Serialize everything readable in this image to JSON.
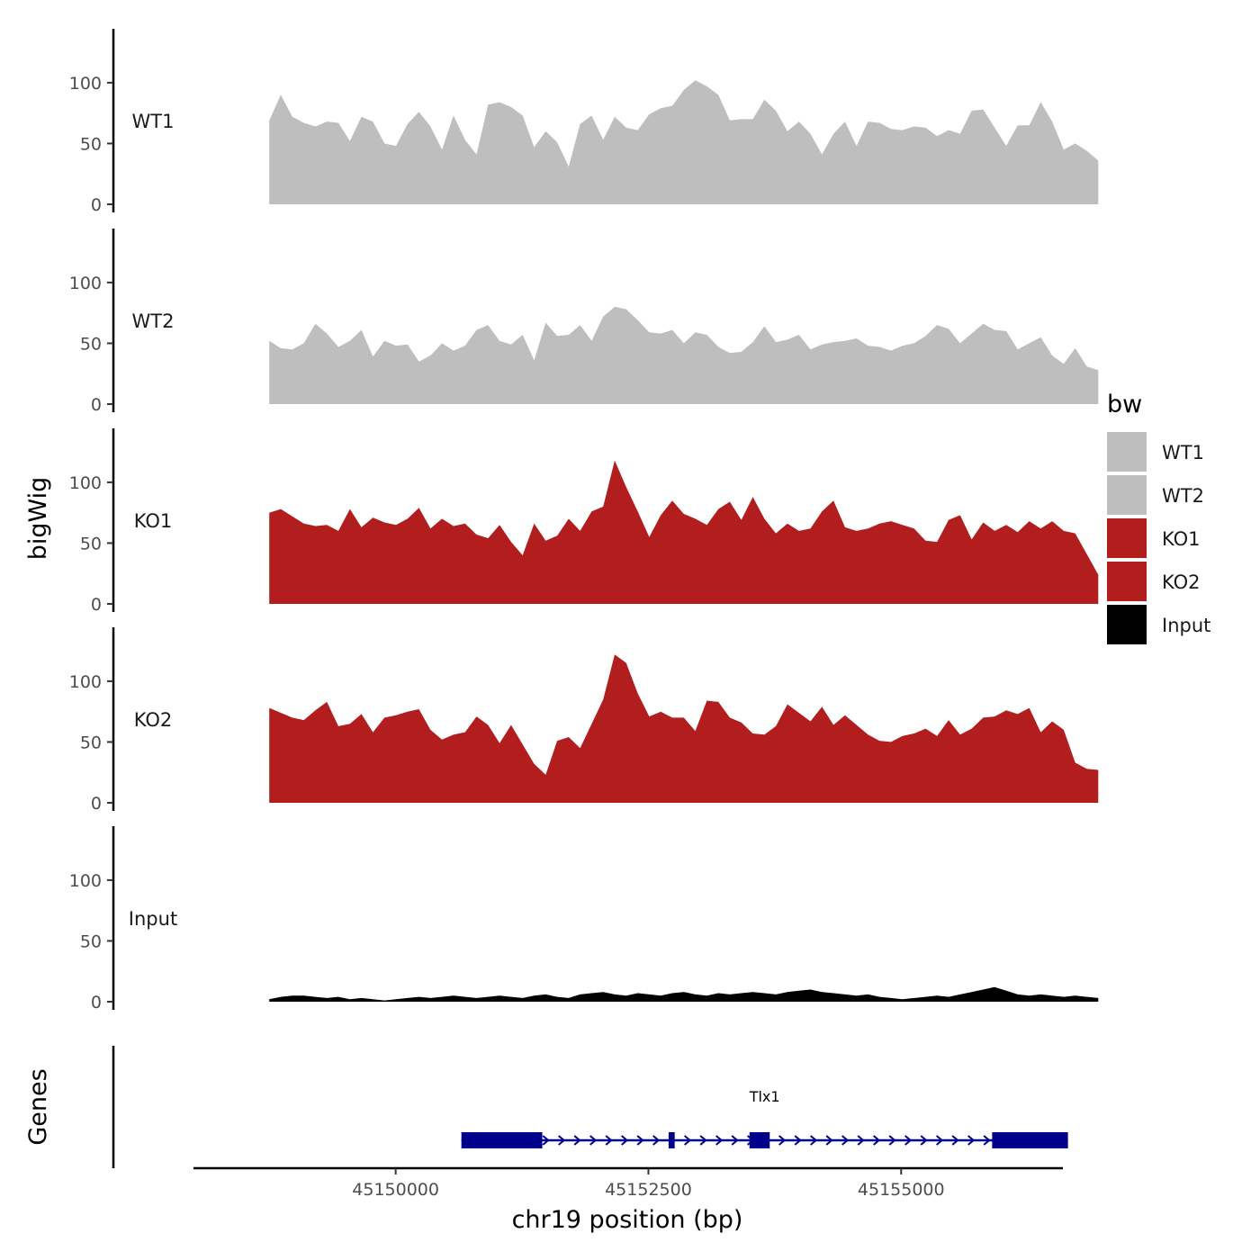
{
  "chart_data": {
    "type": "area",
    "chromosome": "chr19",
    "xlabel": "chr19 position (bp)",
    "ylabel": "bigWig",
    "x_range": [
      45148000,
      45156600
    ],
    "x_ticks": [
      45150000,
      45152500,
      45155000
    ],
    "x_tick_labels": [
      "45150000",
      "45152500",
      "45155000"
    ],
    "ylim": [
      0,
      140
    ],
    "y_ticks": [
      0,
      50,
      100
    ],
    "y_tick_labels": [
      "0",
      "50",
      "100"
    ],
    "legend_title": "bw",
    "legend": [
      {
        "label": "WT1",
        "color": "#bebebe"
      },
      {
        "label": "WT2",
        "color": "#bebebe"
      },
      {
        "label": "KO1",
        "color": "#b21e1e"
      },
      {
        "label": "KO2",
        "color": "#b21e1e"
      },
      {
        "label": "Input",
        "color": "#000000"
      }
    ],
    "series": [
      {
        "name": "WT1",
        "color": "#bebebe",
        "x_start": 45148750,
        "x_end": 45156950,
        "values": [
          69,
          90,
          72,
          67,
          64,
          68,
          67,
          52,
          72,
          68,
          50,
          48,
          66,
          76,
          64,
          45,
          73,
          53,
          41,
          82,
          84,
          80,
          73,
          47,
          60,
          51,
          31,
          66,
          73,
          53,
          72,
          63,
          61,
          74,
          79,
          81,
          94,
          102,
          97,
          90,
          69,
          70,
          70,
          86,
          77,
          60,
          68,
          58,
          41,
          58,
          68,
          48,
          68,
          67,
          62,
          61,
          64,
          63,
          56,
          61,
          58,
          77,
          78,
          63,
          48,
          65,
          65,
          84,
          68,
          45,
          50,
          44,
          36
        ]
      },
      {
        "name": "WT2",
        "color": "#bebebe",
        "x_start": 45148750,
        "x_end": 45156950,
        "values": [
          52,
          46,
          45,
          50,
          66,
          58,
          47,
          52,
          61,
          39,
          52,
          48,
          49,
          35,
          40,
          50,
          44,
          48,
          61,
          65,
          52,
          49,
          57,
          36,
          67,
          56,
          57,
          65,
          52,
          72,
          80,
          78,
          69,
          59,
          58,
          61,
          50,
          59,
          57,
          47,
          42,
          43,
          51,
          64,
          51,
          53,
          57,
          45,
          49,
          51,
          52,
          54,
          48,
          47,
          44,
          48,
          50,
          56,
          65,
          62,
          50,
          58,
          66,
          61,
          60,
          45,
          50,
          55,
          40,
          33,
          46,
          31,
          28
        ]
      },
      {
        "name": "KO1",
        "color": "#b21e1e",
        "x_start": 45148750,
        "x_end": 45156950,
        "values": [
          75,
          78,
          72,
          66,
          64,
          65,
          60,
          78,
          63,
          71,
          67,
          65,
          70,
          79,
          62,
          70,
          64,
          66,
          57,
          54,
          65,
          51,
          40,
          66,
          52,
          56,
          70,
          60,
          76,
          80,
          118,
          96,
          76,
          55,
          73,
          85,
          74,
          70,
          65,
          78,
          84,
          69,
          88,
          70,
          58,
          66,
          60,
          62,
          76,
          85,
          63,
          60,
          62,
          66,
          68,
          65,
          62,
          52,
          51,
          69,
          73,
          53,
          67,
          60,
          65,
          59,
          68,
          62,
          68,
          60,
          58,
          41,
          24
        ]
      },
      {
        "name": "KO2",
        "color": "#b21e1e",
        "x_start": 45148750,
        "x_end": 45156950,
        "values": [
          78,
          74,
          70,
          68,
          76,
          83,
          63,
          65,
          73,
          58,
          70,
          72,
          75,
          77,
          60,
          52,
          56,
          58,
          71,
          64,
          49,
          64,
          48,
          32,
          23,
          51,
          54,
          45,
          65,
          85,
          122,
          115,
          90,
          71,
          75,
          70,
          70,
          59,
          84,
          83,
          70,
          66,
          57,
          56,
          63,
          81,
          74,
          67,
          79,
          64,
          72,
          64,
          56,
          51,
          50,
          55,
          57,
          61,
          55,
          68,
          56,
          61,
          70,
          71,
          76,
          73,
          78,
          58,
          67,
          60,
          33,
          28,
          27
        ]
      },
      {
        "name": "Input",
        "color": "#000000",
        "x_start": 45148750,
        "x_end": 45156950,
        "values": [
          2,
          4,
          5,
          5,
          4,
          3,
          4,
          2,
          3,
          2,
          1,
          2,
          3,
          4,
          3,
          4,
          5,
          4,
          3,
          4,
          5,
          4,
          3,
          5,
          6,
          4,
          3,
          6,
          7,
          8,
          6,
          5,
          7,
          6,
          5,
          7,
          8,
          6,
          5,
          7,
          6,
          7,
          8,
          7,
          6,
          8,
          9,
          10,
          8,
          7,
          6,
          5,
          6,
          4,
          3,
          2,
          3,
          4,
          5,
          4,
          6,
          8,
          10,
          12,
          9,
          6,
          5,
          6,
          5,
          4,
          5,
          4,
          3
        ]
      }
    ],
    "gene_track": {
      "label": "Genes",
      "gene_name": "Tlx1",
      "start": 45150650,
      "end": 45156650,
      "strand": "+",
      "exons": [
        {
          "start": 45150650,
          "end": 45151450
        },
        {
          "start": 45152700,
          "end": 45152760
        },
        {
          "start": 45153500,
          "end": 45153700
        },
        {
          "start": 45155900,
          "end": 45156650
        }
      ],
      "color": "#00008b"
    }
  }
}
